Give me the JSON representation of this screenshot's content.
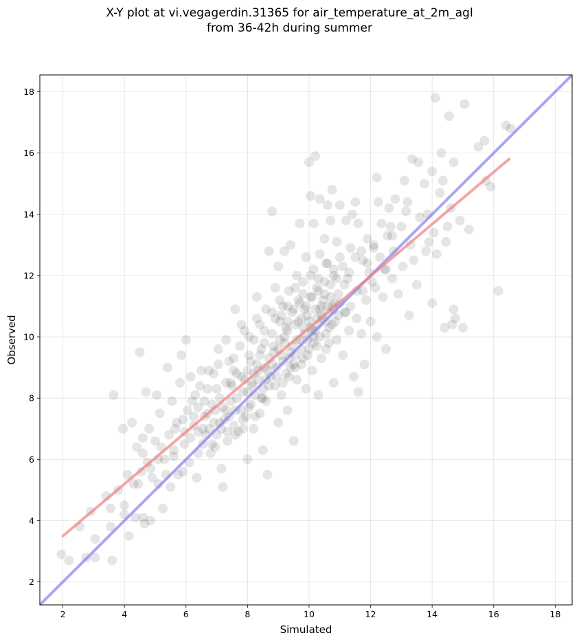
{
  "title_lines": [
    "X-Y plot at vi.vegagerdin.31365 for air_temperature_at_2m_agl",
    "from 36-42h during summer"
  ],
  "colors": {
    "points": "#000000",
    "regression": "#f08080",
    "identity": "#8080f0",
    "grid": "#b0b0b0"
  },
  "chart_data": {
    "type": "scatter",
    "title": "X-Y plot at vi.vegagerdin.31365 for air_temperature_at_2m_agl from 36-42h during summer",
    "xlabel": "Simulated",
    "ylabel": "Observed",
    "xlim": [
      1.25,
      18.55
    ],
    "ylim": [
      1.25,
      18.55
    ],
    "xticks": [
      2,
      4,
      6,
      8,
      10,
      12,
      14,
      16,
      18
    ],
    "yticks": [
      2,
      4,
      6,
      8,
      10,
      12,
      14,
      16,
      18
    ],
    "grid": true,
    "point_alpha": 0.1,
    "identity_line": {
      "x": [
        1.25,
        18.55
      ],
      "y": [
        1.25,
        18.55
      ]
    },
    "regression_line": {
      "x": [
        2.0,
        16.5
      ],
      "y": [
        3.5,
        15.8
      ]
    },
    "points_note": "dense cloud along the diagonal; main mass around 8–11",
    "points": [
      [
        1.95,
        2.9
      ],
      [
        2.2,
        2.7
      ],
      [
        2.55,
        3.8
      ],
      [
        2.75,
        2.8
      ],
      [
        2.9,
        4.3
      ],
      [
        3.05,
        3.4
      ],
      [
        3.05,
        2.8
      ],
      [
        3.4,
        4.8
      ],
      [
        3.55,
        3.8
      ],
      [
        3.55,
        4.4
      ],
      [
        3.6,
        2.7
      ],
      [
        3.65,
        8.1
      ],
      [
        3.8,
        5.0
      ],
      [
        3.95,
        7.0
      ],
      [
        4.0,
        4.2
      ],
      [
        4.0,
        4.5
      ],
      [
        4.1,
        5.5
      ],
      [
        4.15,
        3.5
      ],
      [
        4.25,
        7.2
      ],
      [
        4.35,
        4.1
      ],
      [
        4.4,
        6.4
      ],
      [
        4.45,
        5.2
      ],
      [
        4.5,
        9.5
      ],
      [
        4.55,
        5.6
      ],
      [
        4.6,
        6.7
      ],
      [
        4.6,
        4.1
      ],
      [
        4.65,
        3.9
      ],
      [
        4.7,
        8.2
      ],
      [
        4.75,
        5.9
      ],
      [
        4.8,
        7.0
      ],
      [
        4.85,
        4.0
      ],
      [
        4.9,
        5.4
      ],
      [
        5.0,
        6.6
      ],
      [
        5.05,
        8.1
      ],
      [
        5.1,
        5.2
      ],
      [
        5.15,
        7.5
      ],
      [
        5.2,
        6.4
      ],
      [
        5.25,
        4.4
      ],
      [
        5.3,
        6.0
      ],
      [
        5.4,
        9.0
      ],
      [
        5.45,
        6.8
      ],
      [
        5.5,
        5.1
      ],
      [
        5.55,
        7.9
      ],
      [
        5.6,
        6.3
      ],
      [
        5.7,
        7.2
      ],
      [
        5.75,
        5.5
      ],
      [
        5.8,
        8.5
      ],
      [
        5.85,
        9.4
      ],
      [
        5.95,
        6.9
      ],
      [
        6.0,
        9.9
      ],
      [
        6.05,
        7.6
      ],
      [
        6.1,
        5.9
      ],
      [
        6.15,
        8.7
      ],
      [
        6.25,
        7.1
      ],
      [
        6.3,
        8.1
      ],
      [
        6.35,
        5.4
      ],
      [
        6.4,
        7.7
      ],
      [
        6.5,
        8.9
      ],
      [
        6.55,
        6.5
      ],
      [
        6.6,
        7.4
      ],
      [
        6.7,
        8.3
      ],
      [
        6.75,
        7.0
      ],
      [
        6.8,
        6.2
      ],
      [
        6.9,
        8.8
      ],
      [
        6.95,
        7.6
      ],
      [
        7.0,
        6.8
      ],
      [
        7.05,
        9.1
      ],
      [
        7.1,
        8.0
      ],
      [
        7.15,
        5.7
      ],
      [
        7.2,
        5.1
      ],
      [
        7.25,
        7.3
      ],
      [
        7.3,
        8.5
      ],
      [
        7.35,
        6.6
      ],
      [
        7.4,
        9.2
      ],
      [
        7.45,
        7.9
      ],
      [
        7.5,
        8.4
      ],
      [
        7.55,
        7.1
      ],
      [
        7.6,
        10.9
      ],
      [
        7.65,
        8.8
      ],
      [
        7.7,
        6.9
      ],
      [
        7.75,
        9.7
      ],
      [
        7.8,
        7.6
      ],
      [
        7.85,
        8.2
      ],
      [
        7.9,
        10.2
      ],
      [
        7.95,
        7.4
      ],
      [
        8.0,
        8.9
      ],
      [
        8.0,
        6.0
      ],
      [
        8.05,
        9.4
      ],
      [
        8.1,
        7.8
      ],
      [
        8.15,
        8.5
      ],
      [
        8.2,
        9.9
      ],
      [
        8.2,
        7.0
      ],
      [
        8.25,
        8.1
      ],
      [
        8.3,
        11.3
      ],
      [
        8.3,
        9.1
      ],
      [
        8.35,
        8.6
      ],
      [
        8.4,
        7.5
      ],
      [
        8.4,
        10.4
      ],
      [
        8.45,
        9.6
      ],
      [
        8.5,
        8.3
      ],
      [
        8.5,
        6.3
      ],
      [
        8.55,
        9.0
      ],
      [
        8.6,
        10.9
      ],
      [
        8.6,
        7.9
      ],
      [
        8.65,
        5.5
      ],
      [
        8.7,
        9.3
      ],
      [
        8.7,
        12.8
      ],
      [
        8.75,
        8.7
      ],
      [
        8.8,
        14.1
      ],
      [
        8.8,
        10.1
      ],
      [
        8.85,
        9.7
      ],
      [
        8.9,
        8.4
      ],
      [
        8.9,
        11.6
      ],
      [
        8.95,
        9.0
      ],
      [
        9.0,
        12.3
      ],
      [
        9.0,
        7.2
      ],
      [
        9.05,
        10.5
      ],
      [
        9.1,
        9.4
      ],
      [
        9.1,
        8.1
      ],
      [
        9.15,
        11.0
      ],
      [
        9.2,
        9.8
      ],
      [
        9.2,
        12.8
      ],
      [
        9.25,
        8.8
      ],
      [
        9.3,
        10.2
      ],
      [
        9.3,
        7.6
      ],
      [
        9.35,
        11.5
      ],
      [
        9.4,
        9.5
      ],
      [
        9.4,
        13.0
      ],
      [
        9.45,
        10.8
      ],
      [
        9.5,
        9.1
      ],
      [
        9.5,
        6.6
      ],
      [
        9.55,
        10.4
      ],
      [
        9.6,
        12.0
      ],
      [
        9.6,
        8.6
      ],
      [
        9.65,
        11.2
      ],
      [
        9.7,
        9.9
      ],
      [
        9.7,
        13.7
      ],
      [
        9.75,
        10.6
      ],
      [
        9.8,
        9.3
      ],
      [
        9.8,
        11.8
      ],
      [
        9.85,
        10.1
      ],
      [
        9.9,
        8.3
      ],
      [
        9.9,
        12.6
      ],
      [
        9.95,
        10.7
      ],
      [
        10.0,
        9.6
      ],
      [
        10.0,
        15.7
      ],
      [
        10.05,
        11.3
      ],
      [
        10.05,
        14.6
      ],
      [
        10.1,
        10.2
      ],
      [
        10.1,
        8.9
      ],
      [
        10.15,
        12.2
      ],
      [
        10.15,
        13.7
      ],
      [
        10.2,
        10.9
      ],
      [
        10.2,
        15.9
      ],
      [
        10.25,
        9.7
      ],
      [
        10.25,
        11.6
      ],
      [
        10.3,
        10.4
      ],
      [
        10.3,
        8.1
      ],
      [
        10.35,
        12.7
      ],
      [
        10.35,
        14.5
      ],
      [
        10.4,
        11.0
      ],
      [
        10.4,
        9.3
      ],
      [
        10.45,
        10.6
      ],
      [
        10.5,
        13.2
      ],
      [
        10.5,
        11.8
      ],
      [
        10.55,
        10.1
      ],
      [
        10.6,
        12.4
      ],
      [
        10.6,
        14.3
      ],
      [
        10.65,
        10.8
      ],
      [
        10.65,
        9.8
      ],
      [
        10.7,
        11.3
      ],
      [
        10.7,
        13.8
      ],
      [
        10.75,
        10.4
      ],
      [
        10.75,
        14.8
      ],
      [
        10.8,
        12.0
      ],
      [
        10.8,
        8.5
      ],
      [
        10.85,
        11.1
      ],
      [
        10.9,
        9.9
      ],
      [
        10.9,
        13.1
      ],
      [
        10.95,
        10.7
      ],
      [
        11.0,
        14.3
      ],
      [
        11.0,
        12.6
      ],
      [
        11.1,
        9.4
      ],
      [
        11.15,
        10.8
      ],
      [
        11.2,
        13.8
      ],
      [
        11.25,
        11.9
      ],
      [
        11.3,
        10.2
      ],
      [
        11.35,
        12.9
      ],
      [
        11.4,
        14.0
      ],
      [
        11.45,
        8.7
      ],
      [
        11.5,
        14.4
      ],
      [
        11.55,
        11.5
      ],
      [
        11.6,
        13.7
      ],
      [
        11.6,
        8.2
      ],
      [
        11.7,
        10.1
      ],
      [
        11.75,
        12.5
      ],
      [
        11.8,
        9.1
      ],
      [
        11.85,
        11.2
      ],
      [
        11.9,
        13.2
      ],
      [
        12.0,
        10.5
      ],
      [
        12.05,
        11.8
      ],
      [
        12.1,
        12.9
      ],
      [
        12.2,
        10.0
      ],
      [
        12.2,
        15.2
      ],
      [
        12.25,
        14.4
      ],
      [
        12.35,
        13.7
      ],
      [
        12.4,
        11.3
      ],
      [
        12.45,
        12.2
      ],
      [
        12.5,
        9.6
      ],
      [
        12.55,
        13.3
      ],
      [
        12.6,
        14.2
      ],
      [
        12.7,
        11.9
      ],
      [
        12.75,
        12.8
      ],
      [
        12.8,
        14.5
      ],
      [
        12.9,
        11.4
      ],
      [
        13.0,
        13.6
      ],
      [
        13.05,
        12.3
      ],
      [
        13.1,
        15.1
      ],
      [
        13.2,
        14.4
      ],
      [
        13.25,
        10.7
      ],
      [
        13.3,
        13.0
      ],
      [
        13.35,
        15.8
      ],
      [
        13.4,
        12.5
      ],
      [
        13.5,
        11.7
      ],
      [
        13.55,
        15.7
      ],
      [
        13.6,
        13.9
      ],
      [
        13.75,
        15.0
      ],
      [
        13.8,
        12.8
      ],
      [
        13.85,
        14.0
      ],
      [
        13.9,
        13.1
      ],
      [
        14.0,
        11.1
      ],
      [
        14.0,
        15.4
      ],
      [
        14.05,
        13.4
      ],
      [
        14.1,
        17.8
      ],
      [
        14.15,
        12.7
      ],
      [
        14.25,
        14.7
      ],
      [
        14.3,
        16.0
      ],
      [
        14.35,
        15.1
      ],
      [
        14.4,
        10.3
      ],
      [
        14.45,
        13.1
      ],
      [
        14.5,
        13.6
      ],
      [
        14.55,
        17.2
      ],
      [
        14.6,
        14.2
      ],
      [
        14.65,
        10.4
      ],
      [
        14.7,
        10.9
      ],
      [
        14.75,
        10.6
      ],
      [
        14.7,
        15.7
      ],
      [
        14.9,
        13.8
      ],
      [
        15.0,
        10.3
      ],
      [
        15.05,
        17.6
      ],
      [
        15.2,
        13.5
      ],
      [
        15.5,
        16.2
      ],
      [
        15.7,
        16.4
      ],
      [
        15.75,
        15.1
      ],
      [
        15.9,
        14.9
      ],
      [
        16.15,
        11.5
      ],
      [
        16.4,
        16.9
      ],
      [
        16.55,
        16.8
      ],
      [
        12.65,
        13.6
      ],
      [
        13.15,
        14.1
      ],
      [
        7.0,
        8.3
      ],
      [
        7.3,
        7.6
      ],
      [
        7.55,
        8.9
      ],
      [
        7.8,
        8.7
      ],
      [
        8.1,
        9.2
      ],
      [
        8.35,
        8.9
      ],
      [
        8.55,
        9.8
      ],
      [
        8.85,
        9.5
      ],
      [
        9.05,
        9.9
      ],
      [
        9.25,
        10.3
      ],
      [
        9.45,
        9.7
      ],
      [
        9.65,
        10.5
      ],
      [
        9.85,
        10.9
      ],
      [
        10.05,
        10.3
      ],
      [
        10.25,
        10.6
      ],
      [
        10.45,
        11.2
      ],
      [
        10.65,
        10.3
      ],
      [
        10.85,
        10.5
      ],
      [
        6.6,
        7.9
      ],
      [
        6.9,
        7.2
      ],
      [
        8.0,
        8.2
      ],
      [
        8.2,
        8.8
      ],
      [
        8.45,
        8.0
      ],
      [
        8.65,
        8.9
      ],
      [
        9.15,
        9.2
      ],
      [
        9.35,
        8.7
      ],
      [
        9.55,
        9.4
      ],
      [
        9.75,
        9.1
      ],
      [
        9.95,
        9.9
      ],
      [
        10.15,
        10.0
      ],
      [
        10.35,
        10.9
      ],
      [
        10.55,
        10.5
      ],
      [
        10.75,
        11.0
      ],
      [
        10.95,
        11.4
      ],
      [
        11.15,
        11.7
      ],
      [
        11.35,
        11.0
      ],
      [
        11.55,
        10.6
      ],
      [
        11.75,
        11.5
      ],
      [
        11.95,
        12.1
      ],
      [
        12.15,
        11.6
      ],
      [
        7.2,
        7.7
      ],
      [
        7.45,
        8.5
      ],
      [
        7.65,
        8.0
      ],
      [
        7.9,
        8.6
      ],
      [
        8.15,
        8.4
      ],
      [
        8.4,
        9.4
      ],
      [
        8.6,
        8.6
      ],
      [
        8.8,
        9.1
      ],
      [
        9.0,
        9.6
      ],
      [
        9.2,
        10.0
      ],
      [
        9.4,
        9.0
      ],
      [
        9.6,
        9.9
      ],
      [
        9.8,
        10.3
      ],
      [
        10.0,
        10.5
      ],
      [
        10.2,
        10.2
      ],
      [
        10.4,
        10.7
      ],
      [
        10.6,
        11.0
      ],
      [
        10.8,
        10.9
      ],
      [
        11.0,
        11.1
      ],
      [
        11.2,
        10.8
      ],
      [
        6.4,
        6.9
      ],
      [
        6.7,
        7.5
      ],
      [
        6.95,
        6.4
      ],
      [
        7.15,
        7.0
      ],
      [
        7.4,
        7.4
      ],
      [
        7.6,
        6.8
      ],
      [
        7.85,
        7.3
      ],
      [
        8.05,
        7.7
      ],
      [
        8.25,
        7.4
      ],
      [
        8.5,
        8.0
      ],
      [
        8.7,
        8.4
      ],
      [
        8.95,
        8.7
      ],
      [
        9.15,
        8.5
      ],
      [
        9.35,
        9.3
      ],
      [
        9.55,
        9.0
      ],
      [
        9.75,
        9.6
      ],
      [
        9.95,
        9.4
      ],
      [
        10.15,
        9.8
      ],
      [
        10.35,
        10.0
      ],
      [
        10.55,
        9.6
      ],
      [
        5.9,
        7.3
      ],
      [
        6.2,
        7.9
      ],
      [
        6.45,
        8.4
      ],
      [
        6.75,
        8.9
      ],
      [
        7.05,
        9.6
      ],
      [
        7.3,
        9.9
      ],
      [
        7.55,
        9.3
      ],
      [
        7.8,
        10.4
      ],
      [
        8.05,
        10.0
      ],
      [
        8.3,
        10.6
      ],
      [
        8.55,
        10.2
      ],
      [
        8.8,
        10.8
      ],
      [
        9.05,
        11.2
      ],
      [
        9.3,
        11.0
      ],
      [
        9.55,
        11.6
      ],
      [
        9.8,
        11.4
      ],
      [
        10.05,
        12.0
      ],
      [
        10.3,
        11.9
      ],
      [
        10.55,
        12.4
      ],
      [
        10.8,
        12.2
      ],
      [
        5.6,
        6.1
      ],
      [
        5.9,
        5.6
      ],
      [
        6.15,
        6.7
      ],
      [
        6.4,
        6.2
      ],
      [
        6.65,
        6.8
      ],
      [
        6.85,
        6.5
      ],
      [
        7.1,
        7.2
      ],
      [
        7.35,
        6.9
      ],
      [
        7.6,
        7.6
      ],
      [
        7.85,
        7.0
      ],
      [
        4.3,
        5.2
      ],
      [
        4.6,
        6.2
      ],
      [
        4.85,
        5.7
      ],
      [
        5.1,
        6.0
      ],
      [
        5.35,
        5.5
      ],
      [
        5.65,
        7.0
      ],
      [
        5.95,
        6.5
      ],
      [
        6.25,
        7.4
      ],
      [
        6.55,
        7.0
      ],
      [
        6.85,
        7.8
      ],
      [
        8.9,
        10.6
      ],
      [
        9.1,
        10.7
      ],
      [
        9.3,
        10.5
      ],
      [
        9.5,
        10.9
      ],
      [
        9.7,
        11.1
      ],
      [
        9.9,
        11.0
      ],
      [
        10.1,
        11.3
      ],
      [
        10.3,
        11.5
      ],
      [
        10.5,
        11.4
      ],
      [
        10.7,
        11.7
      ],
      [
        10.9,
        11.9
      ],
      [
        11.1,
        12.3
      ],
      [
        11.3,
        12.1
      ],
      [
        11.5,
        12.6
      ],
      [
        11.7,
        12.8
      ],
      [
        11.9,
        12.4
      ],
      [
        12.1,
        13.0
      ],
      [
        12.3,
        12.6
      ],
      [
        12.5,
        12.2
      ],
      [
        12.7,
        13.3
      ]
    ]
  }
}
